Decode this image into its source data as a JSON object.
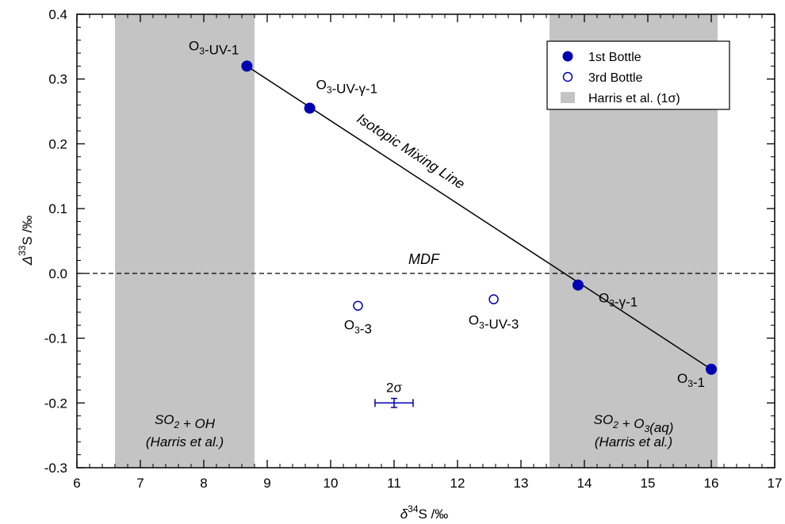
{
  "chart_data": {
    "type": "scatter",
    "xlabel": {
      "prefix": "δ",
      "sup": "34",
      "suffix": "S /‰"
    },
    "ylabel": {
      "prefix": "Δ",
      "sup": "33",
      "suffix": "S /‰"
    },
    "xlim": [
      6,
      17
    ],
    "ylim": [
      -0.3,
      0.4
    ],
    "xticks": [
      "6",
      "7",
      "8",
      "9",
      "10",
      "11",
      "12",
      "13",
      "14",
      "15",
      "16",
      "17"
    ],
    "yticks": [
      "-0.3",
      "-0.2",
      "-0.1",
      "0.0",
      "0.1",
      "0.2",
      "0.3",
      "0.4"
    ],
    "grid": false,
    "legend_position": "top-right",
    "colors": {
      "points": "#0000b0",
      "band": "#c4c4c4",
      "line": "#000000"
    },
    "legend": [
      {
        "label": "1st Bottle",
        "marker": "filled-circle"
      },
      {
        "label": "3rd Bottle",
        "marker": "open-circle"
      },
      {
        "label": "Harris et al. (1σ)",
        "marker": "gray-box"
      }
    ],
    "bands": [
      {
        "x0": 6.6,
        "x1": 8.8,
        "label_line1": "SO₂ + OH",
        "label_line2": "(Harris et al.)"
      },
      {
        "x0": 13.45,
        "x1": 16.1,
        "label_line1": "SO₂ + O₃(aq)",
        "label_line2": "(Harris et al.)"
      }
    ],
    "series": [
      {
        "name": "1st Bottle",
        "marker": "filled",
        "points": [
          {
            "x": 8.68,
            "y": 0.32,
            "label": "O₃-UV-1"
          },
          {
            "x": 9.67,
            "y": 0.255,
            "label": "O₃-UV-γ-1"
          },
          {
            "x": 13.9,
            "y": -0.018,
            "label": "O₃-γ-1"
          },
          {
            "x": 16.0,
            "y": -0.148,
            "label": "O₃-1"
          }
        ]
      },
      {
        "name": "3rd Bottle",
        "marker": "open",
        "points": [
          {
            "x": 10.43,
            "y": -0.05,
            "label": "O₃-3"
          },
          {
            "x": 12.57,
            "y": -0.04,
            "label": "O₃-UV-3"
          }
        ]
      }
    ],
    "mixing_line": {
      "x0": 8.68,
      "y0": 0.32,
      "x1": 16.0,
      "y1": -0.148,
      "label": "Isotopic Mixing Line"
    },
    "mdf_line": {
      "y": 0.0,
      "label": "MDF"
    },
    "error_bar": {
      "x": 11.0,
      "y": -0.2,
      "x_err": 0.3,
      "y_err": 0.007,
      "label": "2σ"
    }
  }
}
